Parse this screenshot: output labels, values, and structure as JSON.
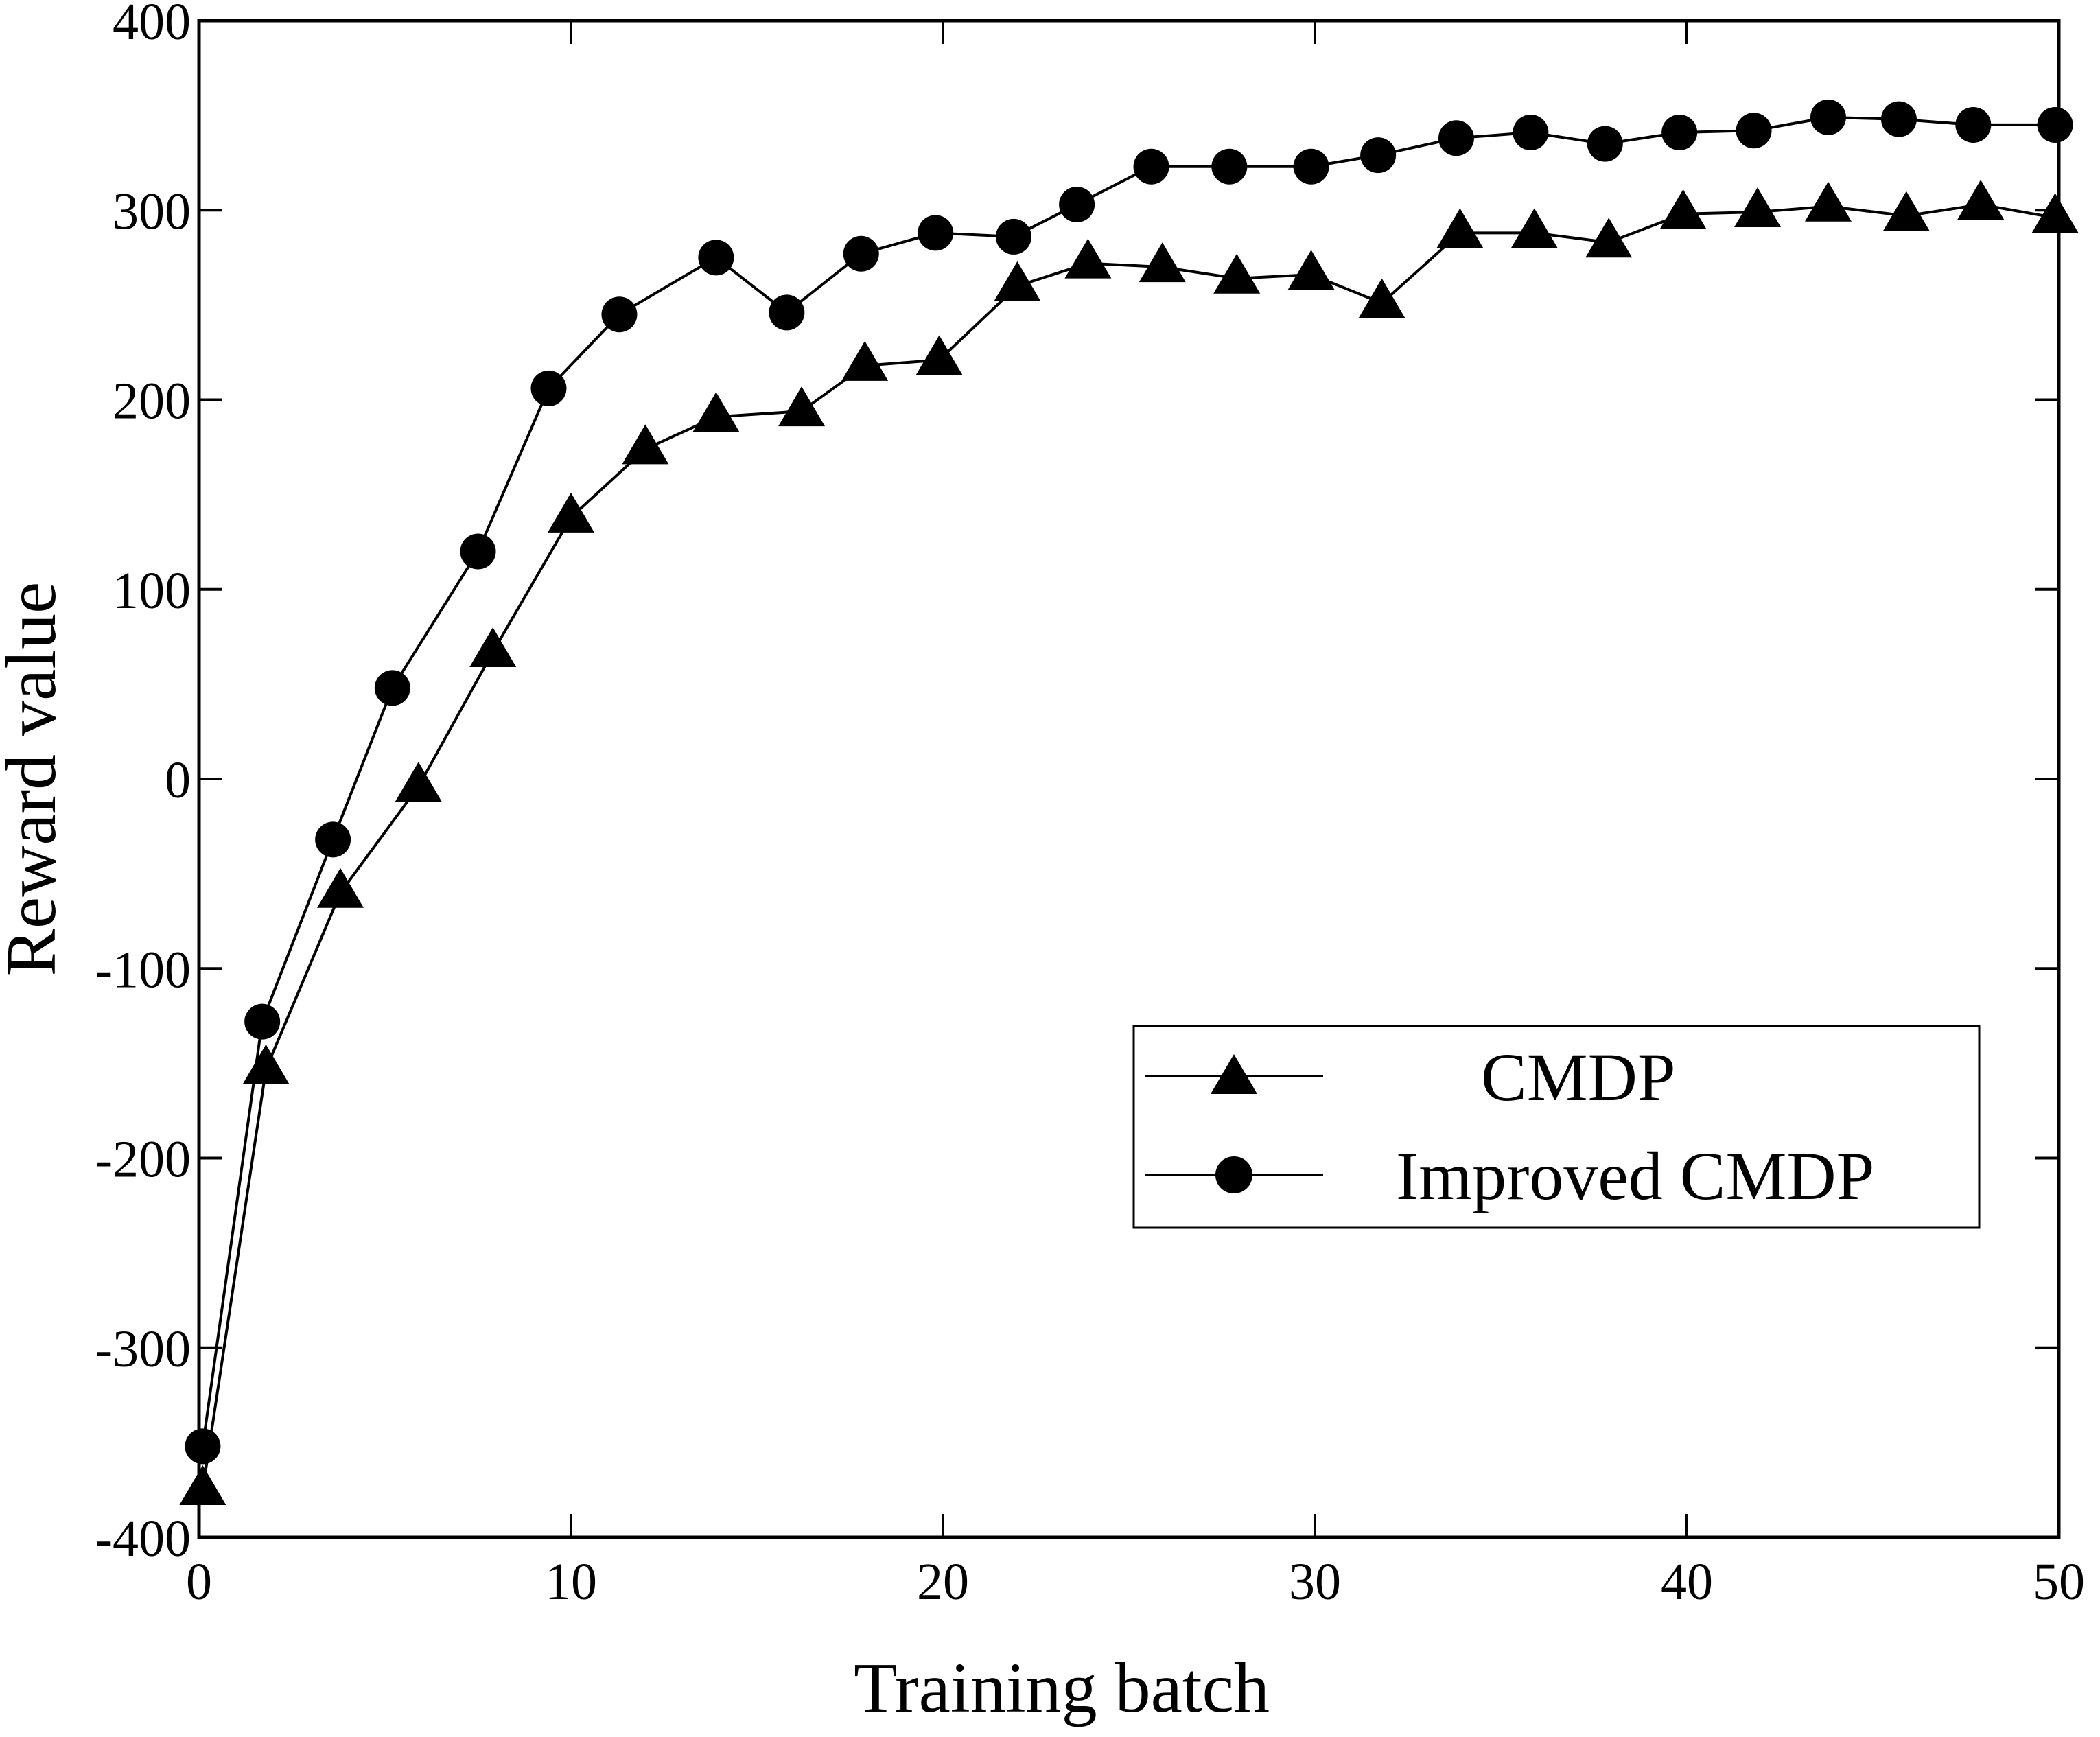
{
  "chart_data": {
    "type": "line",
    "xlabel": "Training batch",
    "ylabel": "Reward value",
    "xlim": [
      0,
      50
    ],
    "ylim": [
      -400,
      400
    ],
    "x_ticks": [
      0,
      10,
      20,
      30,
      40,
      50
    ],
    "y_ticks": [
      -400,
      -300,
      -200,
      -100,
      0,
      100,
      200,
      300,
      400
    ],
    "grid": false,
    "legend_position": "lower-right",
    "series": [
      {
        "name": "CMDP",
        "marker": "triangle",
        "x": [
          0.1,
          1.8,
          3.8,
          5.9,
          7.9,
          10.0,
          12.0,
          13.9,
          16.2,
          17.9,
          19.9,
          22.0,
          23.9,
          25.9,
          27.9,
          29.9,
          31.8,
          33.9,
          35.9,
          37.9,
          39.9,
          41.9,
          43.8,
          45.9,
          47.9,
          49.9
        ],
        "y": [
          -375,
          -153,
          -60,
          -4,
          67,
          138,
          174,
          191,
          194,
          218,
          221,
          260,
          272,
          270,
          264,
          266,
          251,
          288,
          288,
          283,
          298,
          299,
          302,
          297,
          303,
          296
        ]
      },
      {
        "name": "Improved CMDP",
        "marker": "circle",
        "x": [
          0.1,
          1.7,
          3.6,
          5.2,
          7.5,
          9.4,
          11.3,
          13.9,
          15.8,
          17.8,
          19.8,
          21.9,
          23.6,
          25.6,
          27.7,
          29.9,
          31.7,
          33.8,
          35.8,
          37.8,
          39.8,
          41.8,
          43.8,
          45.7,
          47.7,
          49.9
        ],
        "y": [
          -352,
          -128,
          -32,
          48,
          120,
          206,
          245,
          275,
          246,
          277,
          288,
          286,
          303,
          323,
          323,
          323,
          329,
          338,
          341,
          335,
          341,
          342,
          349,
          348,
          345,
          345
        ]
      }
    ]
  }
}
